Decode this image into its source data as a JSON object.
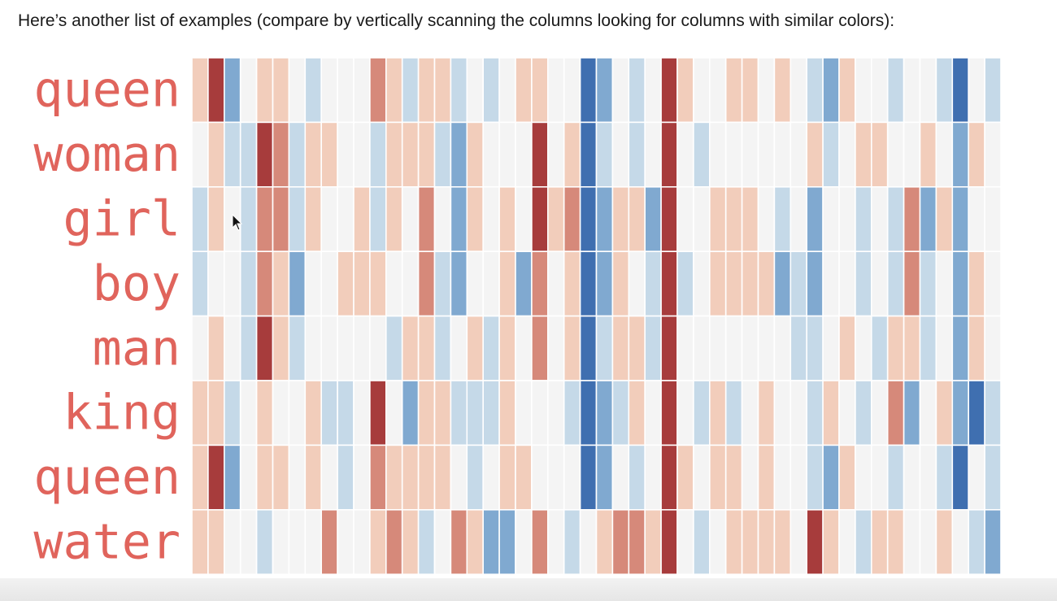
{
  "caption": "Here’s another list of examples (compare by vertically scanning the columns looking for columns with similar colors):",
  "colors": {
    "label": "#e0645c",
    "scale": [
      "#3f6fb0",
      "#80a9d0",
      "#c5d9e8",
      "#f4f4f4",
      "#f2cdbb",
      "#d6897a",
      "#a73c3c"
    ]
  },
  "chart_data": {
    "type": "heatmap",
    "title": "",
    "rows": [
      "queen",
      "woman",
      "girl",
      "boy",
      "man",
      "king",
      "queen",
      "water"
    ],
    "columns": 50,
    "value_range": [
      -3,
      3
    ],
    "value_meaning": "-3 = dark blue, 0 = white/neutral, +3 = dark red",
    "values": [
      [
        1,
        3,
        -2,
        0,
        1,
        1,
        0,
        -1,
        0,
        0,
        0,
        2,
        1,
        -1,
        1,
        1,
        -1,
        0,
        -1,
        0,
        1,
        1,
        0,
        0,
        -3,
        -2,
        0,
        -1,
        0,
        3,
        1,
        0,
        0,
        1,
        1,
        0,
        1,
        0,
        -1,
        -2,
        1,
        0,
        0,
        -1,
        0,
        0,
        -1,
        -3,
        0,
        -1
      ],
      [
        0,
        1,
        -1,
        -1,
        3,
        2,
        -1,
        1,
        1,
        0,
        0,
        -1,
        1,
        1,
        1,
        -1,
        -2,
        1,
        0,
        0,
        0,
        3,
        0,
        1,
        -3,
        -1,
        0,
        -1,
        0,
        3,
        0,
        -1,
        0,
        0,
        0,
        0,
        0,
        0,
        1,
        -1,
        0,
        1,
        1,
        0,
        0,
        1,
        0,
        -2,
        1,
        0
      ],
      [
        -1,
        1,
        0,
        -1,
        2,
        2,
        -1,
        1,
        0,
        0,
        1,
        -1,
        1,
        0,
        2,
        0,
        -2,
        1,
        0,
        1,
        0,
        3,
        1,
        2,
        -3,
        -2,
        1,
        1,
        -2,
        3,
        0,
        0,
        1,
        1,
        1,
        0,
        -1,
        0,
        -2,
        0,
        0,
        -1,
        0,
        -1,
        2,
        -2,
        1,
        -2,
        0,
        0
      ],
      [
        -1,
        0,
        0,
        -1,
        2,
        1,
        -2,
        0,
        0,
        1,
        1,
        1,
        0,
        0,
        2,
        -1,
        -2,
        0,
        0,
        1,
        -2,
        2,
        0,
        1,
        -3,
        -2,
        1,
        0,
        -1,
        3,
        -1,
        0,
        1,
        1,
        1,
        1,
        -2,
        -1,
        -2,
        0,
        0,
        -1,
        0,
        -1,
        2,
        -1,
        0,
        -2,
        1,
        0
      ],
      [
        0,
        1,
        0,
        -1,
        3,
        1,
        -1,
        0,
        0,
        0,
        0,
        0,
        -1,
        1,
        1,
        -1,
        0,
        1,
        -1,
        1,
        0,
        2,
        0,
        1,
        -3,
        -1,
        1,
        1,
        -1,
        3,
        0,
        0,
        0,
        0,
        0,
        0,
        0,
        -1,
        -1,
        0,
        1,
        0,
        -1,
        1,
        1,
        -1,
        0,
        -2,
        1,
        0
      ],
      [
        1,
        1,
        -1,
        0,
        1,
        0,
        0,
        1,
        -1,
        -1,
        0,
        3,
        0,
        -2,
        1,
        1,
        -1,
        -1,
        -1,
        1,
        0,
        0,
        0,
        -1,
        -3,
        -2,
        -1,
        1,
        0,
        3,
        0,
        -1,
        1,
        -1,
        0,
        1,
        0,
        0,
        -1,
        1,
        0,
        -1,
        0,
        2,
        -2,
        0,
        1,
        -2,
        -3,
        -1
      ],
      [
        1,
        3,
        -2,
        0,
        1,
        1,
        0,
        1,
        0,
        -1,
        0,
        2,
        1,
        1,
        1,
        1,
        0,
        -1,
        0,
        1,
        1,
        0,
        0,
        0,
        -3,
        -2,
        0,
        -1,
        0,
        3,
        1,
        0,
        1,
        1,
        0,
        1,
        0,
        0,
        -1,
        -2,
        1,
        0,
        0,
        -1,
        0,
        0,
        -1,
        -3,
        0,
        -1
      ],
      [
        1,
        1,
        0,
        0,
        -1,
        0,
        0,
        0,
        2,
        0,
        0,
        1,
        2,
        1,
        -1,
        0,
        2,
        1,
        -2,
        -2,
        0,
        2,
        0,
        -1,
        0,
        1,
        2,
        2,
        1,
        3,
        0,
        -1,
        0,
        1,
        1,
        1,
        1,
        0,
        3,
        1,
        0,
        -1,
        1,
        1,
        0,
        0,
        1,
        0,
        -1,
        -2
      ]
    ]
  }
}
